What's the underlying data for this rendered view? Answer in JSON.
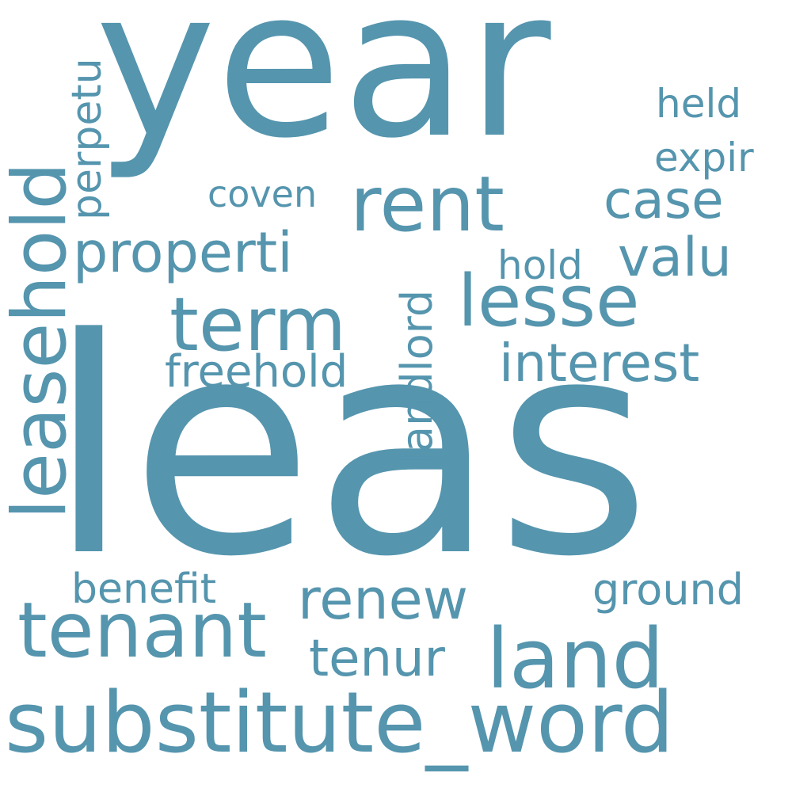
{
  "cloud": {
    "color": "#5595ae",
    "words": [
      {
        "id": "year",
        "text": "year",
        "orientation": "horizontal"
      },
      {
        "id": "leas",
        "text": "leas",
        "orientation": "horizontal"
      },
      {
        "id": "substitute-word",
        "text": "substitute_word",
        "orientation": "horizontal"
      },
      {
        "id": "leasehold",
        "text": "leasehold",
        "orientation": "vertical"
      },
      {
        "id": "tenant",
        "text": "tenant",
        "orientation": "horizontal"
      },
      {
        "id": "land",
        "text": "land",
        "orientation": "horizontal"
      },
      {
        "id": "rent",
        "text": "rent",
        "orientation": "horizontal"
      },
      {
        "id": "lesse",
        "text": "lesse",
        "orientation": "horizontal"
      },
      {
        "id": "term",
        "text": "term",
        "orientation": "horizontal"
      },
      {
        "id": "interest",
        "text": "interest",
        "orientation": "horizontal"
      },
      {
        "id": "properti",
        "text": "properti",
        "orientation": "horizontal"
      },
      {
        "id": "renew",
        "text": "renew",
        "orientation": "horizontal"
      },
      {
        "id": "valu",
        "text": "valu",
        "orientation": "horizontal"
      },
      {
        "id": "case",
        "text": "case",
        "orientation": "horizontal"
      },
      {
        "id": "tenur",
        "text": "tenur",
        "orientation": "horizontal"
      },
      {
        "id": "ground",
        "text": "ground",
        "orientation": "horizontal"
      },
      {
        "id": "benefit",
        "text": "benefit",
        "orientation": "horizontal"
      },
      {
        "id": "freehold",
        "text": "freehold",
        "orientation": "horizontal"
      },
      {
        "id": "landlord",
        "text": "landlord",
        "orientation": "vertical"
      },
      {
        "id": "perpetu",
        "text": "perpetu",
        "orientation": "vertical"
      },
      {
        "id": "expir",
        "text": "expir",
        "orientation": "horizontal"
      },
      {
        "id": "held",
        "text": "held",
        "orientation": "horizontal"
      },
      {
        "id": "hold",
        "text": "hold",
        "orientation": "horizontal"
      },
      {
        "id": "coven",
        "text": "coven",
        "orientation": "horizontal"
      }
    ]
  }
}
